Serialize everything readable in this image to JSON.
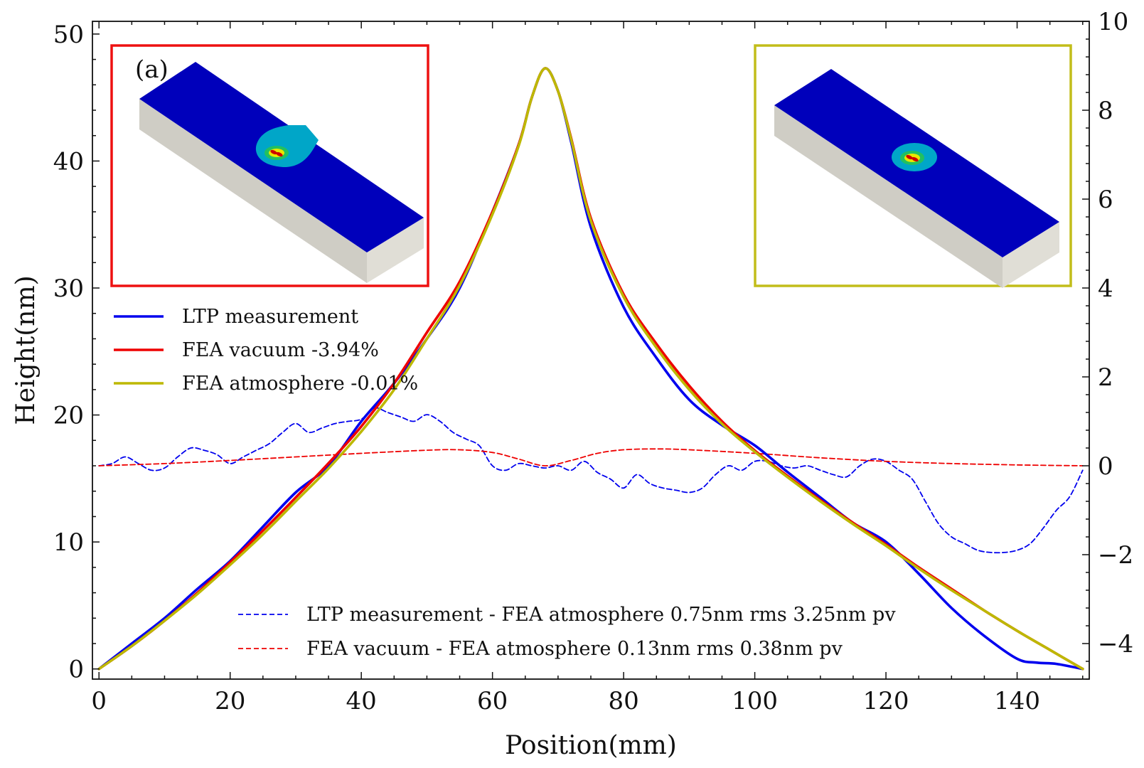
{
  "chart_data": {
    "type": "line",
    "x_axis": {
      "label": "Position(mm)",
      "range": [
        -1,
        151
      ],
      "ticks": [
        0,
        20,
        40,
        60,
        80,
        100,
        120,
        140
      ]
    },
    "y_axis_left": {
      "label": "Height(nm)",
      "range": [
        -0.8,
        51
      ],
      "ticks": [
        0,
        10,
        20,
        30,
        40,
        50
      ]
    },
    "y_axis_right": {
      "label": "",
      "range": [
        -4.8,
        10
      ],
      "ticks": [
        -4,
        -2,
        0,
        2,
        4,
        6,
        8,
        10
      ],
      "tick_labels": [
        "−4",
        "−2",
        "0",
        "2",
        "4",
        "6",
        "8",
        "10"
      ]
    },
    "legend_top": {
      "placement": "upper-left",
      "entries": [
        {
          "label": "LTP measurement",
          "color": "#0000ee",
          "style": "solid"
        },
        {
          "label": "FEA vacuum -3.94%",
          "color": "#ee0000",
          "style": "solid"
        },
        {
          "label": "FEA atmosphere -0.01%",
          "color": "#bdb800",
          "style": "solid"
        }
      ]
    },
    "legend_bottom": {
      "placement": "lower-center",
      "entries": [
        {
          "label": "LTP measurement - FEA atmosphere 0.75nm rms 3.25nm pv",
          "color": "#0000ee",
          "style": "dashed"
        },
        {
          "label": "FEA vacuum - FEA atmosphere 0.13nm rms 0.38nm pv",
          "color": "#ee0000",
          "style": "dashed"
        }
      ]
    },
    "series": [
      {
        "name": "LTP measurement",
        "axis": "left",
        "color": "#0000ee",
        "style": "solid",
        "x": [
          0,
          5,
          10,
          15,
          20,
          25,
          30,
          35,
          40,
          45,
          50,
          55,
          60,
          64,
          66,
          68,
          70,
          72,
          75,
          80,
          85,
          90,
          95,
          100,
          105,
          110,
          115,
          120,
          125,
          130,
          135,
          140,
          143,
          146,
          150
        ],
        "y": [
          0,
          2.0,
          4.0,
          6.3,
          8.5,
          11.2,
          13.9,
          16.0,
          19.5,
          22.5,
          26.0,
          30.0,
          36.0,
          41.3,
          45.0,
          47.3,
          45.5,
          41.5,
          34.8,
          28.5,
          24.5,
          21.2,
          19.2,
          17.6,
          15.5,
          13.5,
          11.5,
          10.0,
          7.5,
          4.8,
          2.6,
          0.8,
          0.5,
          0.4,
          0
        ]
      },
      {
        "name": "FEA vacuum -3.94%",
        "axis": "left",
        "color": "#ee0000",
        "style": "solid",
        "x": [
          0,
          5,
          10,
          15,
          20,
          25,
          30,
          35,
          40,
          45,
          50,
          55,
          60,
          64,
          66,
          68,
          70,
          72,
          75,
          80,
          85,
          90,
          95,
          100,
          105,
          110,
          115,
          120,
          125,
          130,
          135,
          140,
          145,
          150
        ],
        "y": [
          0,
          1.8,
          3.8,
          6.0,
          8.4,
          10.9,
          13.5,
          16.2,
          19.1,
          22.5,
          26.5,
          30.5,
          36.0,
          41.3,
          45.0,
          47.3,
          45.5,
          41.8,
          35.5,
          29.5,
          25.6,
          22.3,
          19.5,
          17.2,
          15.2,
          13.3,
          11.5,
          9.8,
          8.0,
          6.3,
          4.6,
          3.0,
          1.5,
          0
        ]
      },
      {
        "name": "FEA atmosphere -0.01%",
        "axis": "left",
        "color": "#bdb800",
        "style": "solid",
        "x": [
          0,
          5,
          10,
          15,
          20,
          25,
          30,
          35,
          40,
          45,
          50,
          55,
          60,
          64,
          66,
          68,
          70,
          72,
          75,
          80,
          85,
          90,
          95,
          100,
          105,
          110,
          115,
          120,
          125,
          130,
          135,
          140,
          145,
          150
        ],
        "y": [
          0,
          1.8,
          3.8,
          5.9,
          8.2,
          10.6,
          13.2,
          15.8,
          18.7,
          22.0,
          26.0,
          30.2,
          35.8,
          41.2,
          45.0,
          47.3,
          45.5,
          41.7,
          35.3,
          29.3,
          25.3,
          22.0,
          19.3,
          17.1,
          15.1,
          13.2,
          11.4,
          9.7,
          7.9,
          6.2,
          4.6,
          3.0,
          1.5,
          0
        ]
      },
      {
        "name": "LTP measurement - FEA atmosphere 0.75nm rms 3.25nm pv",
        "axis": "right",
        "color": "#0000ee",
        "style": "dashed",
        "x": [
          0,
          2,
          4,
          6,
          8,
          10,
          12,
          14,
          16,
          18,
          20,
          22,
          24,
          26,
          28,
          30,
          32,
          34,
          36,
          38,
          40,
          42,
          44,
          46,
          48,
          50,
          52,
          54,
          56,
          58,
          60,
          62,
          64,
          66,
          68,
          70,
          72,
          74,
          76,
          78,
          80,
          82,
          84,
          86,
          88,
          90,
          92,
          94,
          96,
          98,
          100,
          102,
          104,
          106,
          108,
          110,
          112,
          114,
          116,
          118,
          120,
          122,
          124,
          126,
          128,
          130,
          132,
          134,
          136,
          138,
          140,
          142,
          144,
          146,
          148,
          150
        ],
        "y": [
          0.0,
          0.05,
          0.2,
          0.05,
          -0.1,
          -0.05,
          0.2,
          0.4,
          0.35,
          0.25,
          0.05,
          0.2,
          0.35,
          0.5,
          0.75,
          0.95,
          0.75,
          0.85,
          0.95,
          1.0,
          1.05,
          1.3,
          1.2,
          1.1,
          1.0,
          1.15,
          1.0,
          0.75,
          0.6,
          0.45,
          0.0,
          -0.1,
          0.05,
          0.0,
          -0.05,
          0.0,
          -0.1,
          0.1,
          -0.15,
          -0.3,
          -0.5,
          -0.2,
          -0.4,
          -0.5,
          -0.55,
          -0.6,
          -0.5,
          -0.2,
          0.0,
          -0.1,
          0.1,
          0.1,
          0.0,
          -0.05,
          0.0,
          -0.1,
          -0.2,
          -0.25,
          0.0,
          0.15,
          0.1,
          -0.1,
          -0.3,
          -0.8,
          -1.3,
          -1.6,
          -1.75,
          -1.9,
          -1.95,
          -1.95,
          -1.9,
          -1.75,
          -1.4,
          -1.0,
          -0.7,
          -0.1
        ]
      },
      {
        "name": "FEA vacuum - FEA atmosphere 0.13nm rms 0.38nm pv",
        "axis": "right",
        "color": "#ee0000",
        "style": "dashed",
        "x": [
          0,
          10,
          20,
          30,
          40,
          50,
          55,
          60,
          64,
          68,
          72,
          76,
          80,
          85,
          90,
          100,
          110,
          120,
          130,
          140,
          150
        ],
        "y": [
          0.0,
          0.05,
          0.12,
          0.2,
          0.28,
          0.35,
          0.36,
          0.3,
          0.15,
          0.0,
          0.12,
          0.28,
          0.36,
          0.38,
          0.36,
          0.28,
          0.18,
          0.1,
          0.05,
          0.02,
          0.0
        ]
      }
    ]
  },
  "insets": [
    {
      "name": "inset-vacuum",
      "label": "(a)",
      "frame_color": "#ee1111",
      "top_color": "#0000bb",
      "side_color": "#cfcdc5",
      "end_color": "#e0ded6"
    },
    {
      "name": "inset-atmosphere",
      "label": "",
      "frame_color": "#c2bd1a",
      "top_color": "#0000bb",
      "side_color": "#cfcdc5",
      "end_color": "#e0ded6"
    }
  ]
}
